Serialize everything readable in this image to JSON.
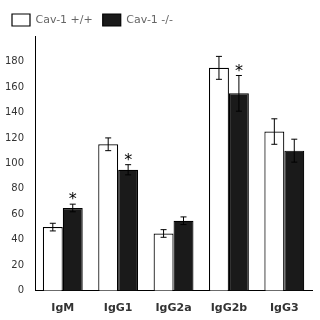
{
  "chart_data": {
    "type": "bar",
    "categories": [
      "IgM",
      "IgG1",
      "IgG2a",
      "IgG2b",
      "IgG3"
    ],
    "series": [
      {
        "name": "Cav-1 +/+",
        "color": "#ffffff",
        "values": [
          50,
          115,
          45,
          175,
          125
        ],
        "errors": [
          3,
          5,
          3,
          9,
          10
        ]
      },
      {
        "name": "Cav-1 -/-",
        "color": "#1a1a1a",
        "values": [
          65,
          95,
          55,
          155,
          110
        ],
        "errors": [
          3,
          4,
          3,
          14,
          9
        ]
      }
    ],
    "ylim": [
      0,
      200
    ],
    "yticks": [
      0,
      20,
      40,
      60,
      80,
      100,
      120,
      140,
      160,
      180
    ],
    "grid": false,
    "legend": "upper left",
    "annotations": [
      {
        "text": "*",
        "category": "IgM",
        "series": "Cav-1 -/-"
      },
      {
        "text": "*",
        "category": "IgG1",
        "series": "Cav-1 -/-"
      },
      {
        "text": "*",
        "category": "IgG2b",
        "series": "Cav-1 -/-"
      }
    ]
  }
}
